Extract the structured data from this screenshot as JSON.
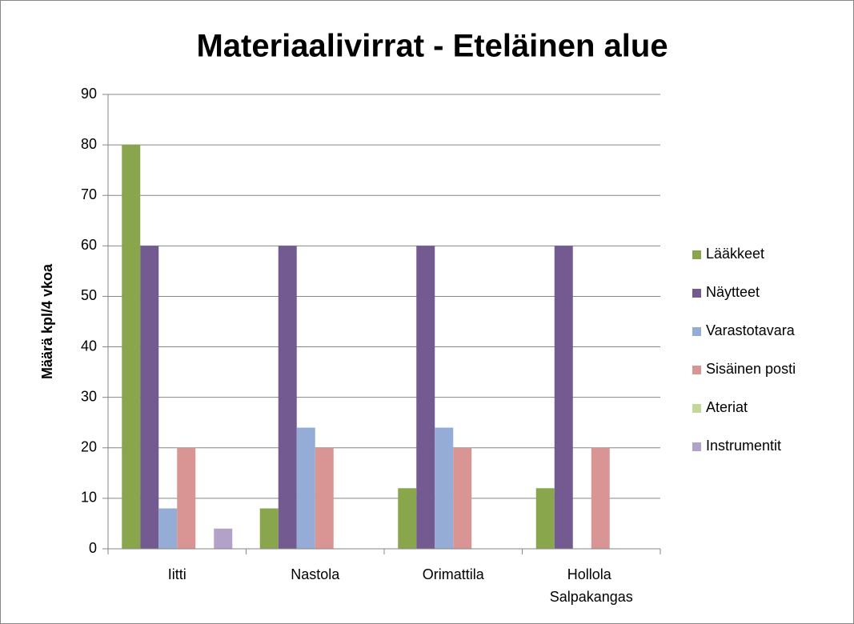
{
  "chart_data": {
    "type": "bar",
    "title": "Materiaalivirrat - Eteläinen alue",
    "y_label": "Määrä kpl/4 vkoa",
    "categories": [
      "Iitti",
      "Nastola",
      "Orimattila",
      "Hollola Salpakangas"
    ],
    "series": [
      {
        "name": "Lääkkeet",
        "color": "#8aa64c",
        "values": [
          80,
          8,
          12,
          12
        ]
      },
      {
        "name": "Näytteet",
        "color": "#735a91",
        "values": [
          60,
          60,
          60,
          60
        ]
      },
      {
        "name": "Varastotavara",
        "color": "#94acd6",
        "values": [
          8,
          24,
          24,
          0
        ]
      },
      {
        "name": "Sisäinen posti",
        "color": "#d99594",
        "values": [
          20,
          20,
          20,
          20
        ]
      },
      {
        "name": "Ateriat",
        "color": "#c3d69b",
        "values": [
          0,
          0,
          0,
          0
        ]
      },
      {
        "name": "Instrumentit",
        "color": "#b3a2c7",
        "values": [
          4,
          0,
          0,
          0
        ]
      }
    ],
    "ylim": [
      0,
      90
    ],
    "yticks": [
      0,
      10,
      20,
      30,
      40,
      50,
      60,
      70,
      80,
      90
    ],
    "grid": true,
    "legend": "right"
  }
}
